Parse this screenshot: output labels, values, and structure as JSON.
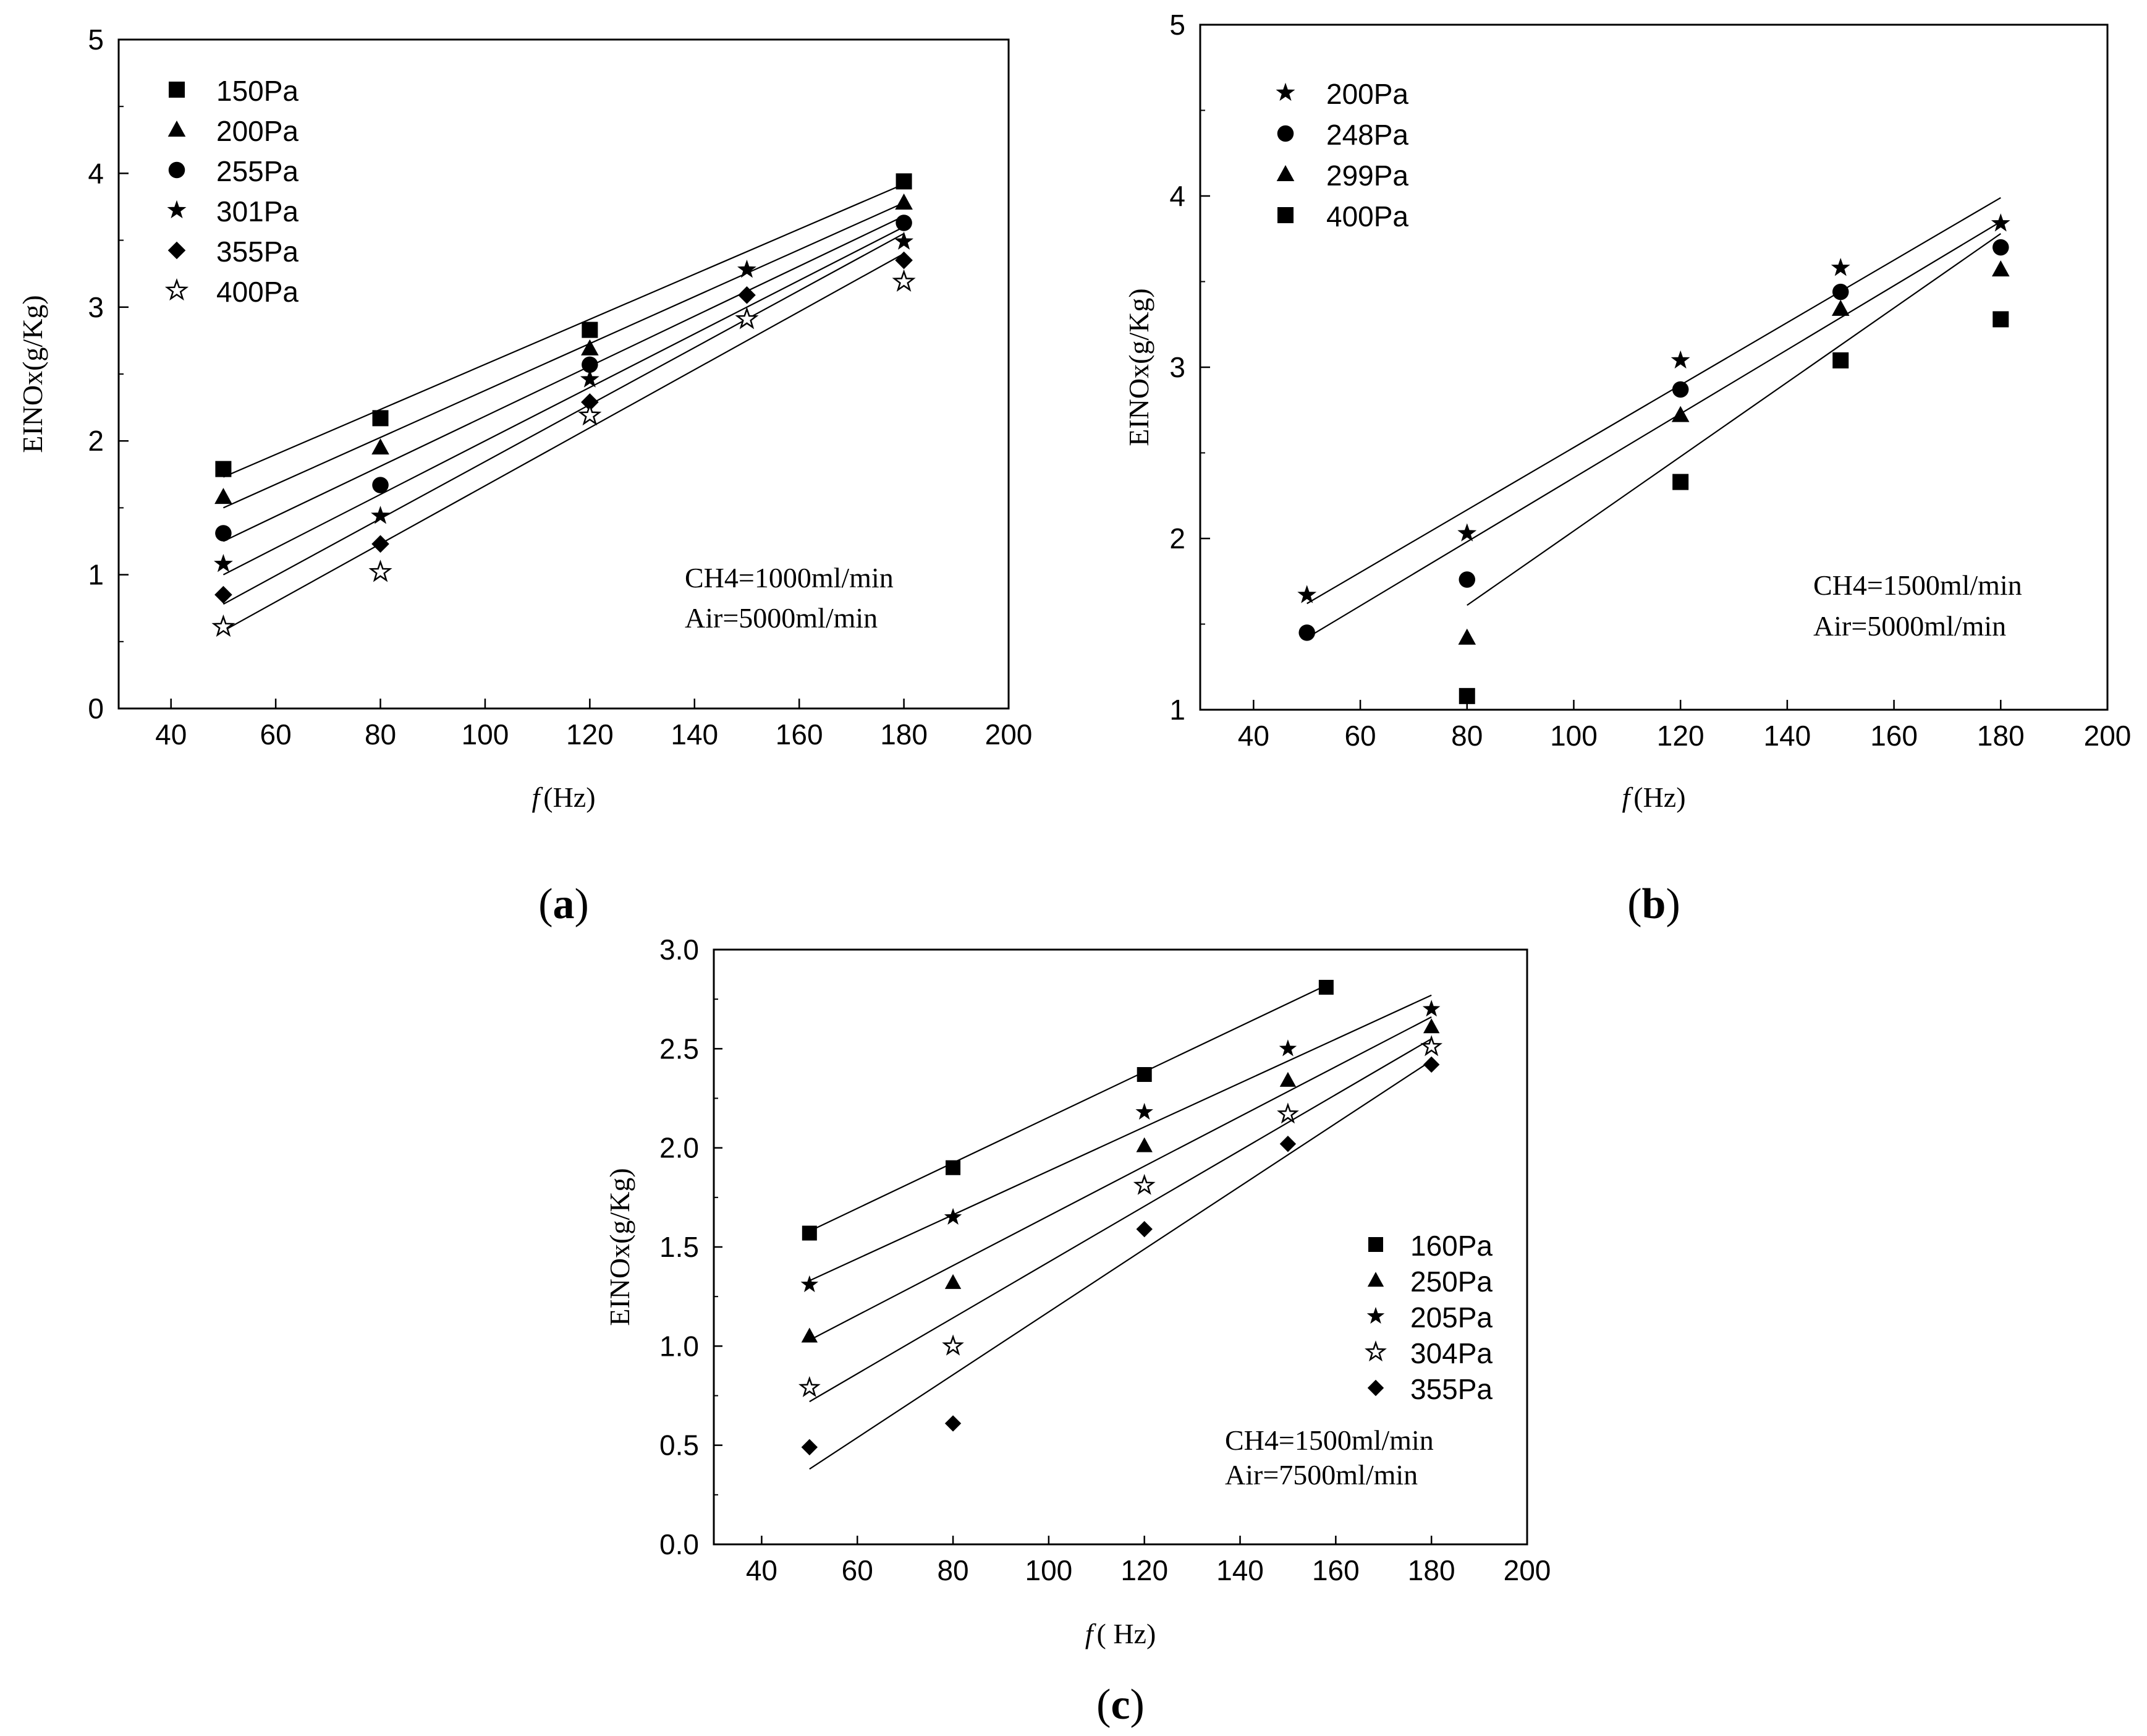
{
  "chart_data": [
    {
      "panel": "a",
      "panel_label": "(a)",
      "type": "scatter",
      "xlabel_italic": "f",
      "xlabel_unit": "(Hz)",
      "ylabel": "EINOx(g/Kg)",
      "xlim": [
        30,
        200
      ],
      "ylim": [
        0,
        5
      ],
      "xticks": [
        40,
        60,
        80,
        100,
        120,
        140,
        160,
        180,
        200
      ],
      "yticks": [
        0,
        1,
        2,
        3,
        4,
        5
      ],
      "ytick_labels": [
        "0",
        "1",
        "2",
        "3",
        "4",
        "5"
      ],
      "legend_position": "top-left",
      "annotation": [
        "CH4=1000ml/min",
        "Air=5000ml/min"
      ],
      "series": [
        {
          "name": "150Pa",
          "marker": "square",
          "x": [
            50,
            80,
            120,
            180
          ],
          "y": [
            1.79,
            2.17,
            2.83,
            3.94
          ],
          "fit": [
            [
              50,
              1.73
            ],
            [
              180,
              3.92
            ]
          ]
        },
        {
          "name": "200Pa",
          "marker": "triangle",
          "x": [
            50,
            80,
            120,
            180
          ],
          "y": [
            1.58,
            1.95,
            2.69,
            3.78
          ],
          "fit": [
            [
              50,
              1.5
            ],
            [
              180,
              3.78
            ]
          ]
        },
        {
          "name": "255Pa",
          "marker": "circle",
          "x": [
            50,
            80,
            120,
            180
          ],
          "y": [
            1.31,
            1.67,
            2.57,
            3.63
          ],
          "fit": [
            [
              50,
              1.25
            ],
            [
              180,
              3.68
            ]
          ]
        },
        {
          "name": "301Pa",
          "marker": "star",
          "x": [
            50,
            80,
            120,
            150,
            180
          ],
          "y": [
            1.08,
            1.44,
            2.46,
            3.28,
            3.49
          ],
          "fit": [
            [
              50,
              1.0
            ],
            [
              180,
              3.6
            ]
          ]
        },
        {
          "name": "355Pa",
          "marker": "diamond",
          "x": [
            50,
            80,
            120,
            150,
            180
          ],
          "y": [
            0.85,
            1.23,
            2.29,
            3.09,
            3.35
          ],
          "fit": [
            [
              50,
              0.78
            ],
            [
              180,
              3.55
            ]
          ]
        },
        {
          "name": "400Pa",
          "marker": "star-open",
          "x": [
            50,
            80,
            120,
            150,
            180
          ],
          "y": [
            0.61,
            1.02,
            2.19,
            2.91,
            3.19
          ],
          "fit": [
            [
              50,
              0.58
            ],
            [
              180,
              3.4
            ]
          ]
        }
      ]
    },
    {
      "panel": "b",
      "panel_label": "(b)",
      "type": "scatter",
      "xlabel_italic": "f",
      "xlabel_unit": "(Hz)",
      "ylabel": "EINOx(g/Kg)",
      "xlim": [
        30,
        200
      ],
      "ylim": [
        1,
        5
      ],
      "xticks": [
        40,
        60,
        80,
        100,
        120,
        140,
        160,
        180,
        200
      ],
      "yticks": [
        1,
        2,
        3,
        4,
        5
      ],
      "ytick_labels": [
        "1",
        "2",
        "3",
        "4",
        "5"
      ],
      "legend_position": "top-left",
      "annotation": [
        "CH4=1500ml/min",
        "Air=5000ml/min"
      ],
      "series": [
        {
          "name": "200Pa",
          "marker": "star",
          "x": [
            50,
            80,
            120,
            150,
            180
          ],
          "y": [
            1.67,
            2.03,
            3.04,
            3.58,
            3.84
          ],
          "fit": [
            [
              50,
              1.62
            ],
            [
              180,
              3.99
            ]
          ]
        },
        {
          "name": "248Pa",
          "marker": "circle",
          "x": [
            50,
            80,
            120,
            150,
            180
          ],
          "y": [
            1.45,
            1.76,
            2.87,
            3.44,
            3.7
          ],
          "fit": [
            [
              50,
              1.42
            ],
            [
              180,
              3.85
            ]
          ]
        },
        {
          "name": "299Pa",
          "marker": "triangle",
          "x": [
            80,
            120,
            150,
            180
          ],
          "y": [
            1.42,
            2.72,
            3.34,
            3.57
          ],
          "fit": [
            [
              80,
              1.61
            ],
            [
              180,
              3.78
            ]
          ]
        },
        {
          "name": "400Pa",
          "marker": "square",
          "x": [
            80,
            120,
            150,
            180
          ],
          "y": [
            1.08,
            2.33,
            3.04,
            3.28
          ],
          "fit": []
        }
      ]
    },
    {
      "panel": "c",
      "panel_label": "(c)",
      "type": "scatter",
      "xlabel_italic": "f",
      "xlabel_unit": "( Hz)",
      "ylabel": "EINOx(g/Kg)",
      "xlim": [
        30,
        200
      ],
      "ylim": [
        0,
        3
      ],
      "xticks": [
        40,
        60,
        80,
        100,
        120,
        140,
        160,
        180,
        200
      ],
      "yticks": [
        0,
        0.5,
        1,
        1.5,
        2,
        2.5,
        3
      ],
      "ytick_labels": [
        "0.0",
        "0.5",
        "1.0",
        "1.5",
        "2.0",
        "2.5",
        "3.0"
      ],
      "legend_position": "bottom-right",
      "annotation": [
        "CH4=1500ml/min",
        "Air=7500ml/min"
      ],
      "series": [
        {
          "name": "160Pa",
          "marker": "square",
          "x": [
            50,
            80,
            120,
            158
          ],
          "y": [
            1.57,
            1.9,
            2.37,
            2.81
          ],
          "fit": [
            [
              50,
              1.58
            ],
            [
              158,
              2.82
            ]
          ]
        },
        {
          "name": "250Pa",
          "marker": "triangle",
          "x": [
            50,
            80,
            120,
            150,
            180
          ],
          "y": [
            1.05,
            1.32,
            2.01,
            2.34,
            2.61
          ],
          "fit": [
            [
              50,
              1.03
            ],
            [
              180,
              2.66
            ]
          ]
        },
        {
          "name": "205Pa",
          "marker": "star",
          "x": [
            50,
            80,
            120,
            150,
            180
          ],
          "y": [
            1.31,
            1.65,
            2.18,
            2.5,
            2.7
          ],
          "fit": [
            [
              50,
              1.33
            ],
            [
              180,
              2.77
            ]
          ]
        },
        {
          "name": "304Pa",
          "marker": "star-open",
          "x": [
            50,
            80,
            120,
            150,
            180
          ],
          "y": [
            0.79,
            1.0,
            1.81,
            2.17,
            2.51
          ],
          "fit": [
            [
              50,
              0.72
            ],
            [
              180,
              2.55
            ]
          ]
        },
        {
          "name": "355Pa",
          "marker": "diamond",
          "x": [
            50,
            80,
            120,
            150,
            180
          ],
          "y": [
            0.49,
            0.61,
            1.59,
            2.02,
            2.42
          ],
          "fit": [
            [
              50,
              0.38
            ],
            [
              180,
              2.44
            ]
          ]
        }
      ]
    }
  ]
}
